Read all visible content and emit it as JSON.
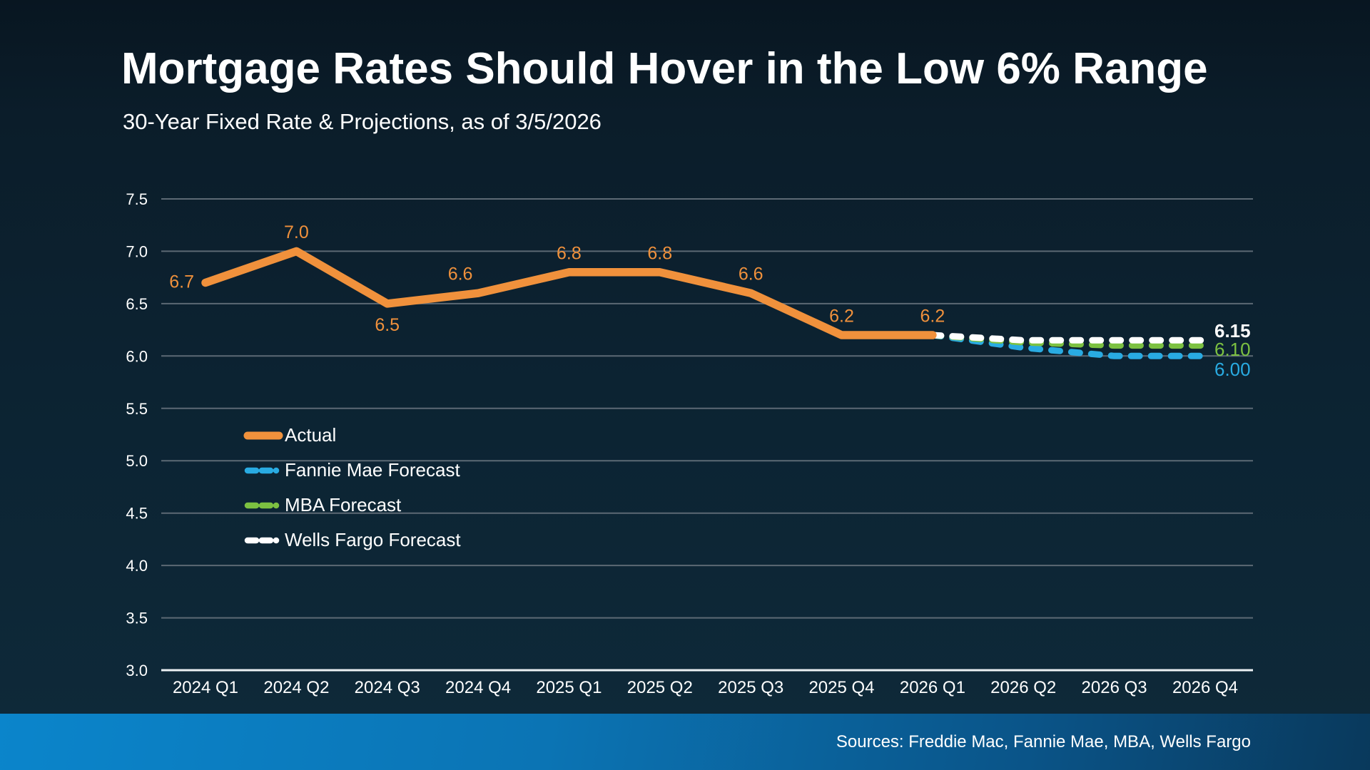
{
  "title": "Mortgage Rates Should Hover in the Low 6% Range",
  "subtitle": "30-Year Fixed Rate & Projections, as of 3/5/2026",
  "footer": {
    "sources": "Sources: Freddie Mac, Fannie Mae, MBA, Wells Fargo"
  },
  "colors": {
    "background_top": "#081621",
    "background_upper": "#0B1D2A",
    "background_mid": "#0C2332",
    "background_bottom": "#0E2A3A",
    "grid": "#5C6974",
    "axis": "#ECF1F4",
    "text": "#FFFFFF",
    "actual_orange": "#F0913C",
    "fannie_mae_blue": "#29ABE2",
    "mba_green": "#7CC141",
    "wells_fargo_white": "#FFFFFF",
    "footer_gradient_left": "#0B85CB",
    "footer_gradient_mid1": "#0B74B4",
    "footer_gradient_mid2": "#0A5488",
    "footer_gradient_right": "#09395C"
  },
  "chart_data": {
    "type": "line",
    "title": "Mortgage Rates Should Hover in the Low 6% Range",
    "subtitle": "30-Year Fixed Rate & Projections, as of 3/5/2026",
    "xlabel": "",
    "ylabel": "",
    "ylim": [
      3.0,
      7.5
    ],
    "ytick_step": 0.5,
    "yticks": [
      "7.5",
      "7.0",
      "6.5",
      "6.0",
      "5.5",
      "5.0",
      "4.5",
      "4.0",
      "3.5",
      "3.0"
    ],
    "grid": "horizontal",
    "legend_position": "inside-left",
    "categories": [
      "2024 Q1",
      "2024 Q2",
      "2024 Q3",
      "2024 Q4",
      "2025 Q1",
      "2025 Q2",
      "2025 Q3",
      "2025 Q4",
      "2026 Q1",
      "2026 Q2",
      "2026 Q3",
      "2026 Q4"
    ],
    "legend": [
      "Actual",
      "Fannie Mae Forecast",
      "MBA Forecast",
      "Wells Fargo Forecast"
    ],
    "series": [
      {
        "name": "Actual",
        "color": "#F0913C",
        "style": "solid",
        "values": [
          6.7,
          7.0,
          6.5,
          6.6,
          6.8,
          6.8,
          6.6,
          6.2,
          6.2,
          null,
          null,
          null
        ],
        "point_labels": [
          {
            "text": "6.7",
            "placement": "left"
          },
          {
            "text": "7.0",
            "placement": "above"
          },
          {
            "text": "6.5",
            "placement": "below"
          },
          {
            "text": "6.6",
            "placement": "above",
            "dx": -25
          },
          {
            "text": "6.8",
            "placement": "above"
          },
          {
            "text": "6.8",
            "placement": "above"
          },
          {
            "text": "6.6",
            "placement": "above"
          },
          {
            "text": "6.2",
            "placement": "above"
          },
          {
            "text": "6.2",
            "placement": "above"
          }
        ]
      },
      {
        "name": "Fannie Mae Forecast",
        "color": "#29ABE2",
        "style": "dashed",
        "values": [
          null,
          null,
          null,
          null,
          null,
          null,
          null,
          null,
          6.2,
          6.08,
          6.0,
          6.0
        ],
        "end_label": "6.00"
      },
      {
        "name": "MBA Forecast",
        "color": "#7CC141",
        "style": "dashed",
        "values": [
          null,
          null,
          null,
          null,
          null,
          null,
          null,
          null,
          6.2,
          6.13,
          6.1,
          6.1
        ],
        "end_label": "6.10"
      },
      {
        "name": "Wells Fargo Forecast",
        "color": "#FFFFFF",
        "style": "dashed",
        "values": [
          null,
          null,
          null,
          null,
          null,
          null,
          null,
          null,
          6.2,
          6.15,
          6.15,
          6.15
        ],
        "end_label": "6.15"
      }
    ]
  }
}
